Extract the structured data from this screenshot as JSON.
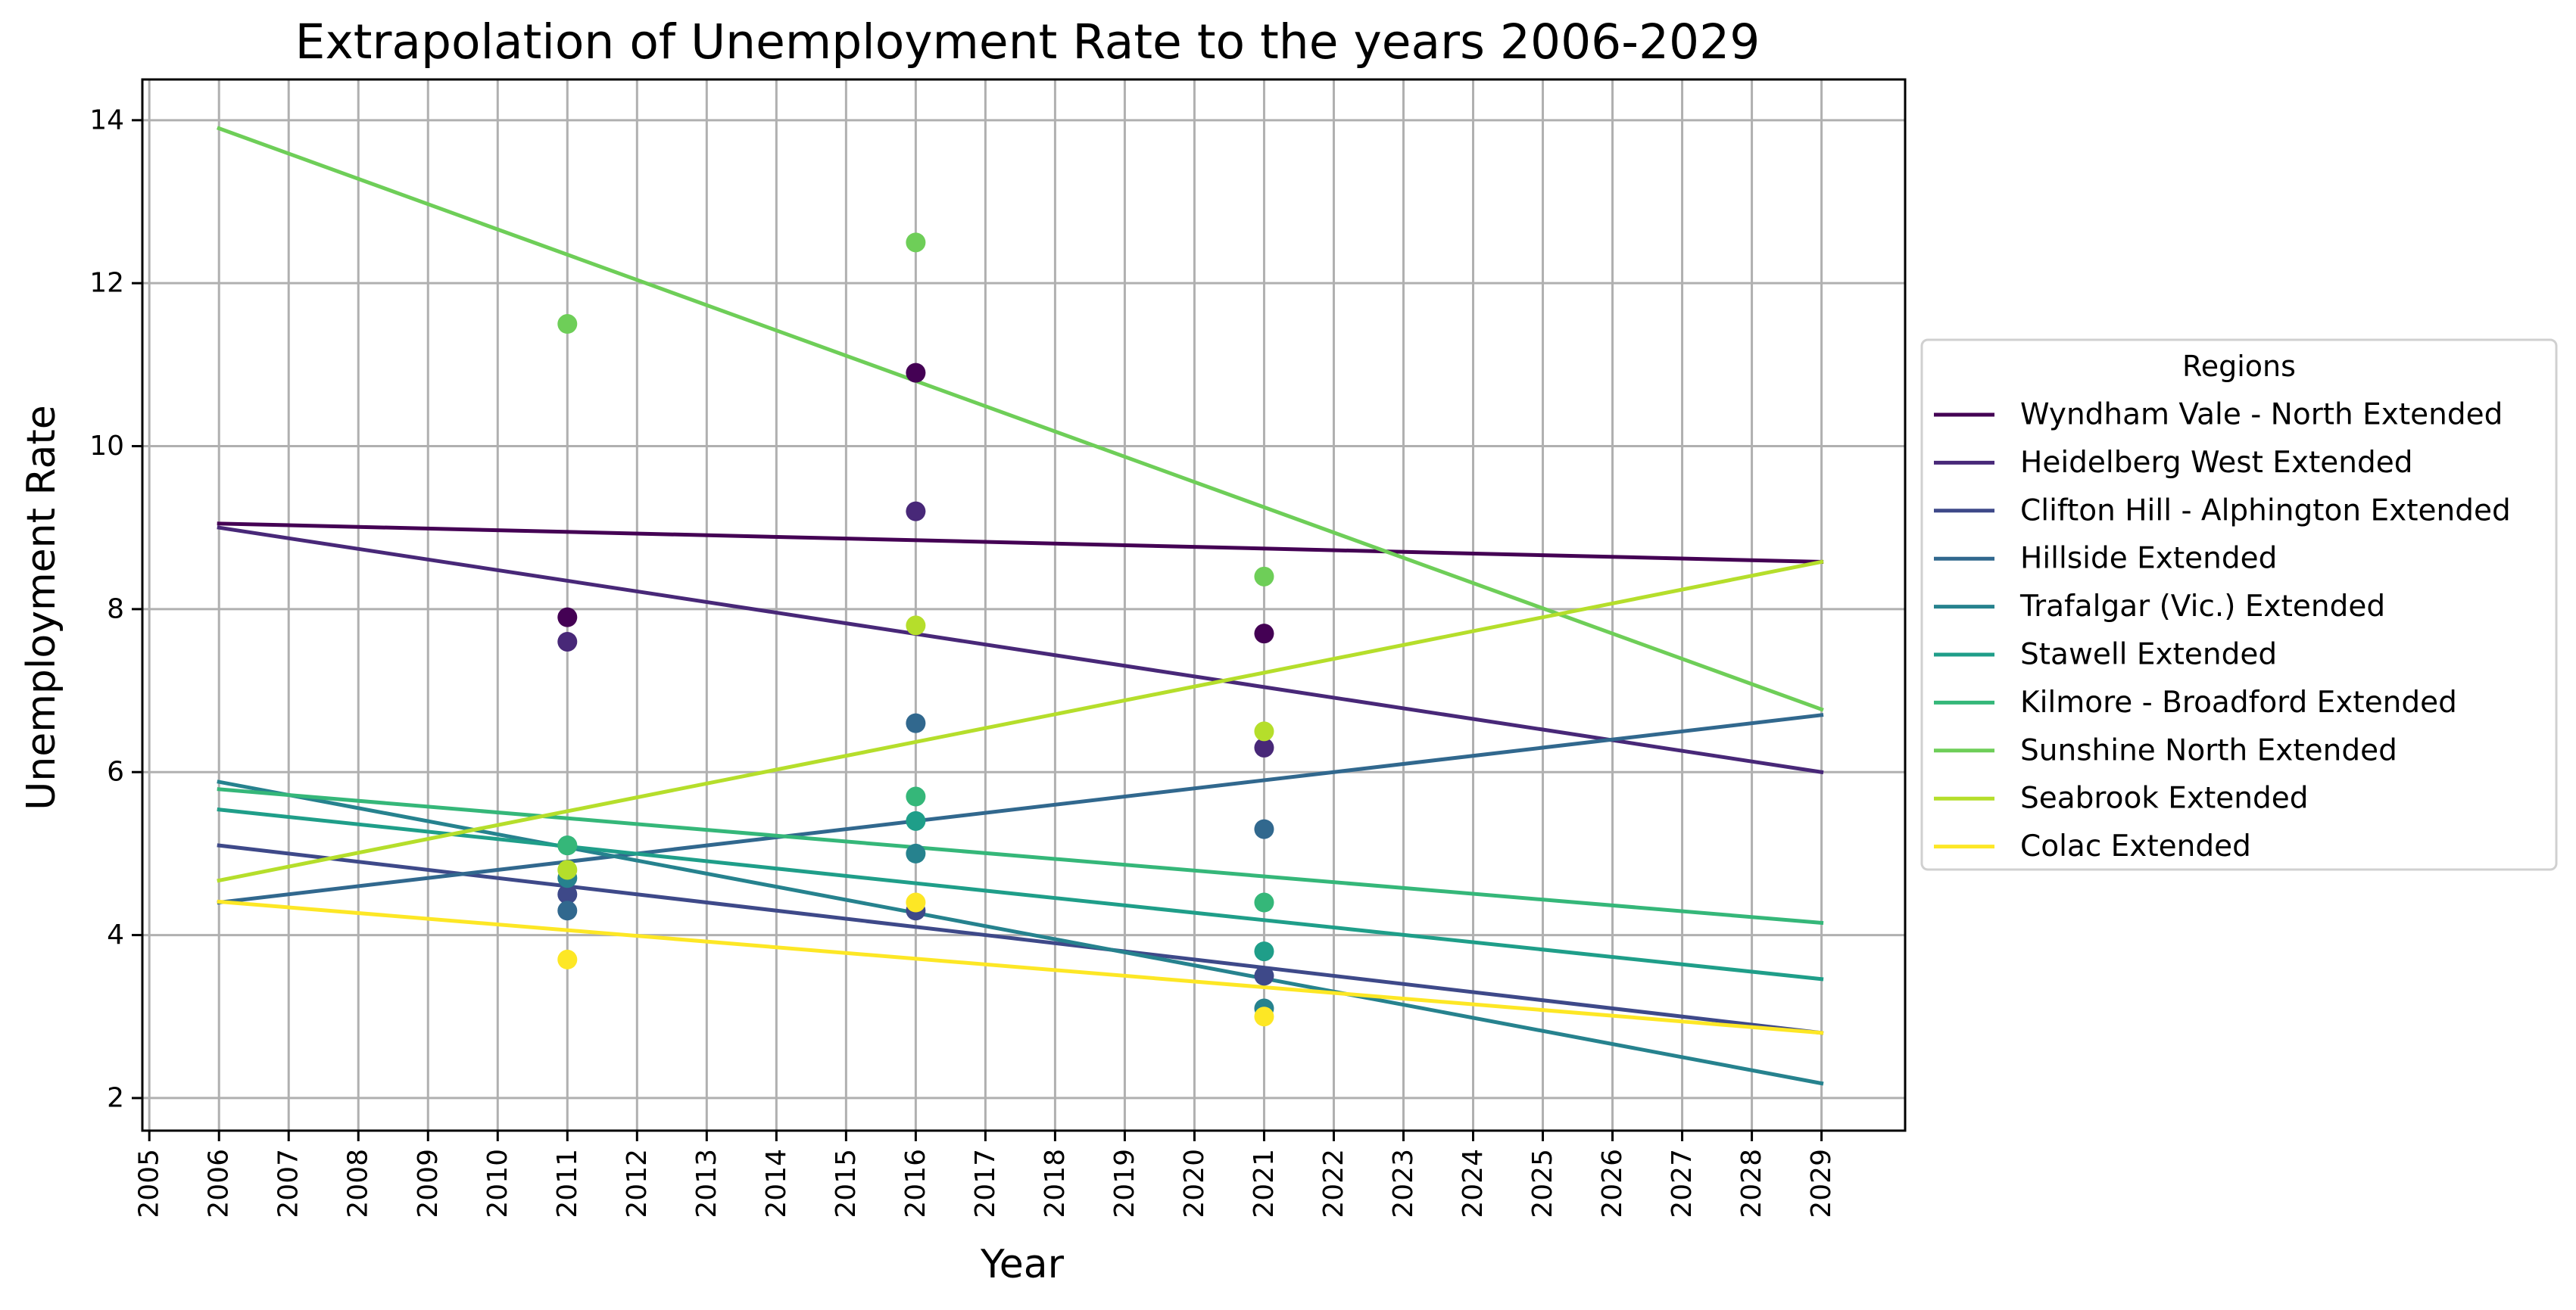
{
  "chart_data": {
    "type": "line",
    "title": "Extrapolation of Unemployment Rate to the years 2006-2029",
    "xlabel": "Year",
    "ylabel": "Unemployment Rate",
    "xlim": [
      2004.9,
      2030.2
    ],
    "ylim": [
      1.6,
      14.5
    ],
    "x_ticks": [
      2005,
      2006,
      2007,
      2008,
      2009,
      2010,
      2011,
      2012,
      2013,
      2014,
      2015,
      2016,
      2017,
      2018,
      2019,
      2020,
      2021,
      2022,
      2023,
      2024,
      2025,
      2026,
      2027,
      2028,
      2029
    ],
    "y_ticks": [
      2,
      4,
      6,
      8,
      10,
      12,
      14
    ],
    "grid": true,
    "legend": {
      "title": "Regions",
      "placement": "outside-right"
    },
    "series": [
      {
        "name": "Wyndham Vale - North Extended",
        "color": "#440154",
        "line": [
          [
            2006,
            9.05
          ],
          [
            2029,
            8.58
          ]
        ],
        "points": [
          [
            2011,
            7.9
          ],
          [
            2016,
            10.9
          ],
          [
            2021,
            7.7
          ]
        ]
      },
      {
        "name": "Heidelberg West Extended",
        "color": "#482878",
        "line": [
          [
            2006,
            9.0
          ],
          [
            2029,
            6.0
          ]
        ],
        "points": [
          [
            2011,
            7.6
          ],
          [
            2016,
            9.2
          ],
          [
            2021,
            6.3
          ]
        ]
      },
      {
        "name": "Clifton Hill - Alphington Extended",
        "color": "#3e4989",
        "line": [
          [
            2006,
            5.1
          ],
          [
            2029,
            2.8
          ]
        ],
        "points": [
          [
            2011,
            4.5
          ],
          [
            2016,
            4.3
          ],
          [
            2021,
            3.5
          ]
        ]
      },
      {
        "name": "Hillside Extended",
        "color": "#31688e",
        "line": [
          [
            2006,
            4.4
          ],
          [
            2029,
            6.7
          ]
        ],
        "points": [
          [
            2011,
            4.3
          ],
          [
            2016,
            6.6
          ],
          [
            2021,
            5.3
          ]
        ]
      },
      {
        "name": "Trafalgar (Vic.) Extended",
        "color": "#26828e",
        "line": [
          [
            2006,
            5.88
          ],
          [
            2029,
            2.18
          ]
        ],
        "points": [
          [
            2011,
            4.7
          ],
          [
            2016,
            5.0
          ],
          [
            2021,
            3.1
          ]
        ]
      },
      {
        "name": "Stawell Extended",
        "color": "#1f9e89",
        "line": [
          [
            2006,
            5.54
          ],
          [
            2029,
            3.46
          ]
        ],
        "points": [
          [
            2011,
            5.1
          ],
          [
            2016,
            5.4
          ],
          [
            2021,
            3.8
          ]
        ]
      },
      {
        "name": "Kilmore - Broadford Extended",
        "color": "#35b779",
        "line": [
          [
            2006,
            5.79
          ],
          [
            2029,
            4.15
          ]
        ],
        "points": [
          [
            2011,
            5.1
          ],
          [
            2016,
            5.7
          ],
          [
            2021,
            4.4
          ]
        ]
      },
      {
        "name": "Sunshine North Extended",
        "color": "#6ece58",
        "line": [
          [
            2006,
            13.9
          ],
          [
            2029,
            6.77
          ]
        ],
        "points": [
          [
            2011,
            11.5
          ],
          [
            2016,
            12.5
          ],
          [
            2021,
            8.4
          ]
        ]
      },
      {
        "name": "Seabrook Extended",
        "color": "#b5de2b",
        "line": [
          [
            2006,
            4.67
          ],
          [
            2029,
            8.58
          ]
        ],
        "points": [
          [
            2011,
            4.8
          ],
          [
            2016,
            7.8
          ],
          [
            2021,
            6.5
          ]
        ]
      },
      {
        "name": "Colac Extended",
        "color": "#fde725",
        "line": [
          [
            2006,
            4.41
          ],
          [
            2029,
            2.8
          ]
        ],
        "points": [
          [
            2011,
            3.7
          ],
          [
            2016,
            4.4
          ],
          [
            2021,
            3.0
          ]
        ]
      }
    ]
  }
}
